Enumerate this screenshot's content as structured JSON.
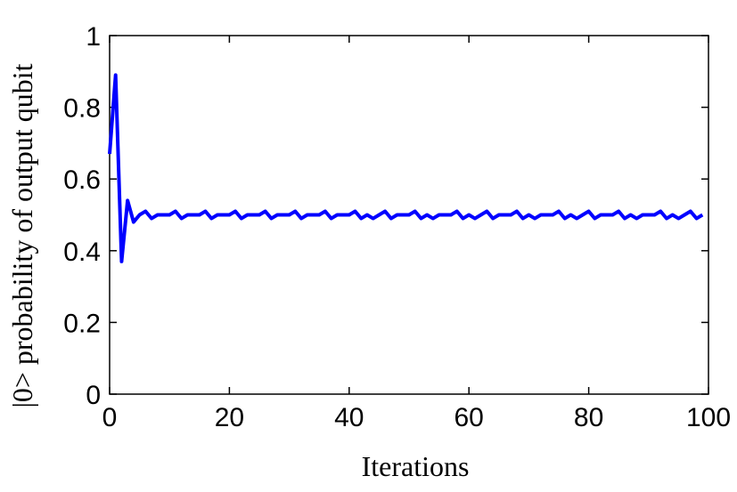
{
  "chart_data": {
    "type": "line",
    "xlabel": "Iterations",
    "ylabel": "|0> probability of output qubit",
    "x": [
      0,
      1,
      2,
      3,
      4,
      5,
      6,
      7,
      8,
      9,
      10,
      11,
      12,
      13,
      14,
      15,
      16,
      17,
      18,
      19,
      20,
      21,
      22,
      23,
      24,
      25,
      26,
      27,
      28,
      29,
      30,
      31,
      32,
      33,
      34,
      35,
      36,
      37,
      38,
      39,
      40,
      41,
      42,
      43,
      44,
      45,
      46,
      47,
      48,
      49,
      50,
      51,
      52,
      53,
      54,
      55,
      56,
      57,
      58,
      59,
      60,
      61,
      62,
      63,
      64,
      65,
      66,
      67,
      68,
      69,
      70,
      71,
      72,
      73,
      74,
      75,
      76,
      77,
      78,
      79,
      80,
      81,
      82,
      83,
      84,
      85,
      86,
      87,
      88,
      89,
      90,
      91,
      92,
      93,
      94,
      95,
      96,
      97,
      98,
      99
    ],
    "series": [
      {
        "color": "#0000ff",
        "values": [
          0.67,
          0.89,
          0.37,
          0.54,
          0.48,
          0.5,
          0.51,
          0.49,
          0.5,
          0.5,
          0.5,
          0.51,
          0.49,
          0.5,
          0.5,
          0.5,
          0.51,
          0.49,
          0.5,
          0.5,
          0.5,
          0.51,
          0.49,
          0.5,
          0.5,
          0.5,
          0.51,
          0.49,
          0.5,
          0.5,
          0.5,
          0.51,
          0.49,
          0.5,
          0.5,
          0.5,
          0.51,
          0.49,
          0.5,
          0.5,
          0.5,
          0.51,
          0.49,
          0.5,
          0.49,
          0.5,
          0.51,
          0.49,
          0.5,
          0.5,
          0.5,
          0.51,
          0.49,
          0.5,
          0.49,
          0.5,
          0.5,
          0.5,
          0.51,
          0.49,
          0.5,
          0.49,
          0.5,
          0.51,
          0.49,
          0.5,
          0.5,
          0.5,
          0.51,
          0.49,
          0.5,
          0.49,
          0.5,
          0.5,
          0.5,
          0.51,
          0.49,
          0.5,
          0.49,
          0.5,
          0.51,
          0.49,
          0.5,
          0.5,
          0.5,
          0.51,
          0.49,
          0.5,
          0.49,
          0.5,
          0.5,
          0.5,
          0.51,
          0.49,
          0.5,
          0.49,
          0.5,
          0.51,
          0.49,
          0.5
        ]
      }
    ],
    "xlim": [
      0,
      100
    ],
    "ylim": [
      0,
      1
    ],
    "xticks": [
      0,
      20,
      40,
      60,
      80,
      100
    ],
    "yticks": [
      0,
      0.2,
      0.4,
      0.6,
      0.8,
      1
    ]
  }
}
